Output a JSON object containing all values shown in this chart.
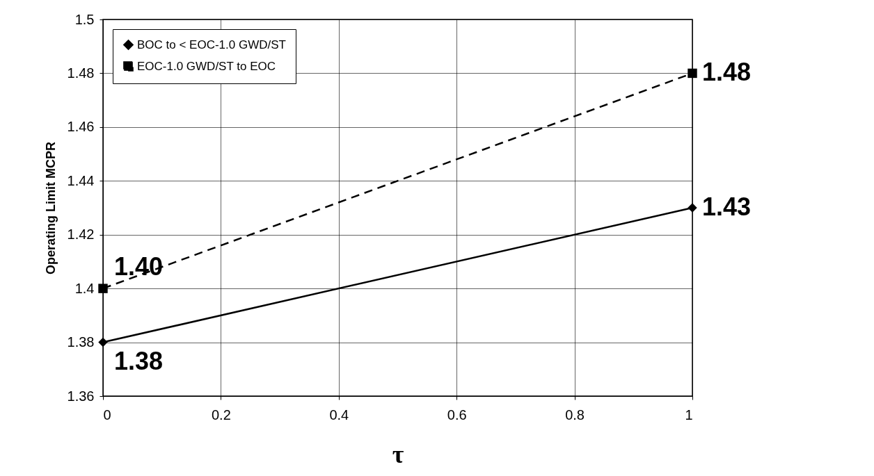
{
  "chart_data": {
    "type": "line",
    "ylabel": "Operating Limit MCPR",
    "xlabel": "τ",
    "x": [
      0,
      1
    ],
    "series": [
      {
        "name": "BOC to < EOC-1.0 GWD/ST",
        "color": "#000000",
        "values": [
          1.38,
          1.43
        ],
        "marker": "diamond",
        "line_style": "solid",
        "value_labels": [
          "1.38",
          "1.43"
        ]
      },
      {
        "name": "EOC-1.0 GWD/ST to EOC",
        "color": "#000000",
        "values": [
          1.4,
          1.48
        ],
        "marker": "square",
        "line_style": "dashed",
        "value_labels": [
          "1.40",
          "1.48"
        ]
      }
    ],
    "xlim": [
      0,
      1
    ],
    "xticks": [
      0,
      0.2,
      0.4,
      0.6,
      0.8,
      1
    ],
    "ylim": [
      1.36,
      1.5
    ],
    "yticks": [
      1.36,
      1.38,
      1.4,
      1.42,
      1.44,
      1.46,
      1.48,
      1.5
    ],
    "grid": true,
    "legend": "top left"
  }
}
